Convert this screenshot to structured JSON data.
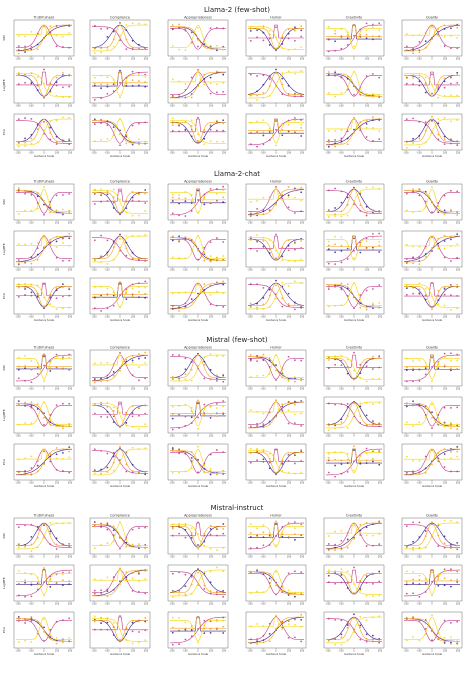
{
  "figure": {
    "colors": {
      "s1": "#3b1f8c",
      "s2": "#c23a8a",
      "s3": "#f7a21b",
      "s4": "#f5d60a"
    },
    "columns": [
      "Truthfulness",
      "Compliance",
      "Appropriateness",
      "Humor",
      "Creativity",
      "Quality"
    ],
    "rows": [
      "SIM",
      "LogMFE",
      "PCA"
    ],
    "xlabel": "Guidance Scale",
    "x_ticks": [
      "-200",
      "-100",
      "0",
      "100",
      "200"
    ]
  },
  "sections": [
    {
      "title": "Llama-2 (few-shot)"
    },
    {
      "title": "Llama-2-chat"
    },
    {
      "title": "Mistral (few-shot)"
    },
    {
      "title": "Mistral-instruct"
    }
  ],
  "chart_data": {
    "type": "line",
    "note_x": "guidance scale",
    "x": [
      -200,
      -150,
      -100,
      -50,
      0,
      50,
      100,
      150,
      200
    ],
    "panel_shapes": [
      "rise",
      "bump",
      "sigmoid",
      "dip",
      "flat-spike"
    ],
    "ylim": [
      -0.6,
      0.6
    ]
  }
}
